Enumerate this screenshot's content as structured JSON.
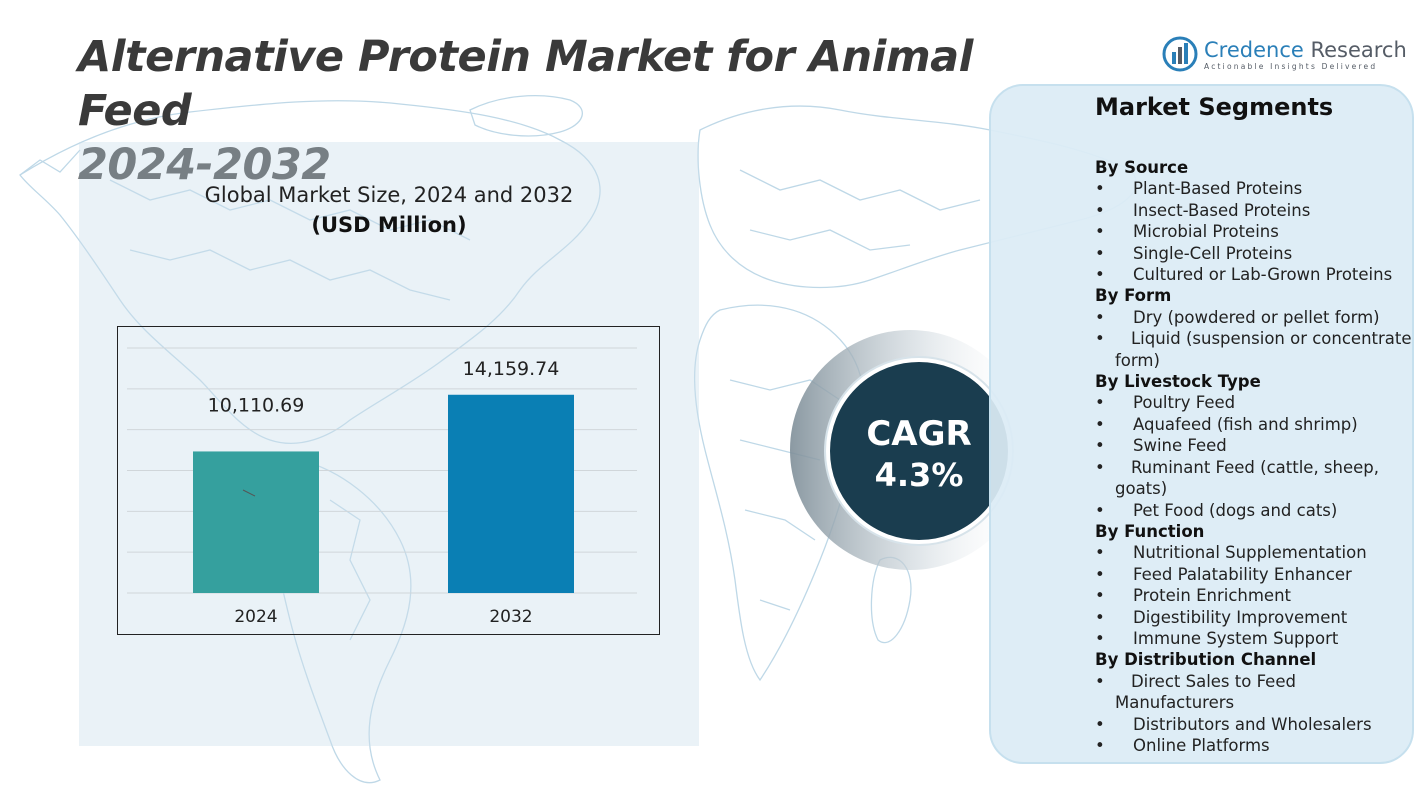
{
  "title_line1": "Alternative Protein Market for Animal Feed",
  "title_line2": "2024-2032",
  "logo": {
    "name_part1": "Credence",
    "name_part2": " Research",
    "tagline": "Actionable Insights Delivered"
  },
  "chart_data": {
    "type": "bar",
    "title": "Global Market Size, 2024 and 2032",
    "units": "(USD Million)",
    "categories": [
      "2024",
      "2032"
    ],
    "values": [
      10110.69,
      14159.74
    ],
    "value_labels": [
      "10,110.69",
      "14,159.74"
    ],
    "ylim": [
      0,
      17500
    ],
    "grid": true,
    "bar_colors": [
      "#35a09e",
      "#0a7fb4"
    ],
    "xlabel": "",
    "ylabel": ""
  },
  "cagr": {
    "label": "CAGR",
    "value": "4.3%"
  },
  "segments": {
    "title": "Market Segments",
    "groups": [
      {
        "heading": "By Source",
        "items": [
          "Plant-Based Proteins",
          "Insect-Based Proteins",
          "Microbial Proteins",
          "Single-Cell Proteins",
          "Cultured or Lab-Grown Proteins"
        ]
      },
      {
        "heading": "By Form",
        "items": [
          "Dry (powdered or pellet form)",
          "Liquid (suspension or concentrate form)"
        ]
      },
      {
        "heading": "By Livestock Type",
        "items": [
          "Poultry Feed",
          "Aquafeed (fish and shrimp)",
          "Swine Feed",
          "Ruminant Feed (cattle, sheep, goats)",
          "Pet Food (dogs and cats)"
        ]
      },
      {
        "heading": "By Function",
        "items": [
          "Nutritional Supplementation",
          "Feed Palatability Enhancer",
          "Protein Enrichment",
          "Digestibility Improvement",
          "Immune System Support"
        ]
      },
      {
        "heading": "By Distribution Channel",
        "items": [
          "Direct Sales to Feed Manufacturers",
          "Distributors and Wholesalers",
          "Online Platforms"
        ]
      }
    ]
  }
}
